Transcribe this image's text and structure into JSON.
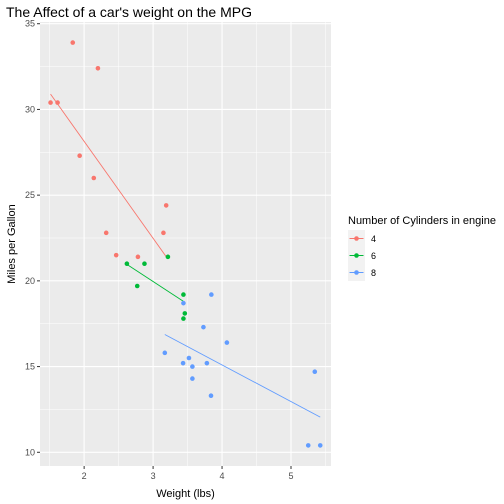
{
  "chart_data": {
    "type": "scatter",
    "title": "The Affect of a car's weight on the MPG",
    "xlabel": "Weight (lbs)",
    "ylabel": "Miles per Gallon",
    "xlim": [
      1.36,
      5.58
    ],
    "ylim": [
      9.2,
      35.1
    ],
    "x_ticks": [
      2,
      3,
      4,
      5
    ],
    "y_ticks": [
      10,
      15,
      20,
      25,
      30,
      35
    ],
    "grid": true,
    "legend": {
      "title": "Number of Cylinders in engine",
      "position": "right"
    },
    "series": [
      {
        "name": "4",
        "color": "#F8766D",
        "points": [
          [
            1.513,
            30.4
          ],
          [
            1.615,
            30.4
          ],
          [
            1.835,
            33.9
          ],
          [
            1.935,
            27.3
          ],
          [
            2.14,
            26.0
          ],
          [
            2.2,
            32.4
          ],
          [
            2.32,
            22.8
          ],
          [
            2.465,
            21.5
          ],
          [
            2.78,
            21.4
          ],
          [
            3.15,
            22.8
          ],
          [
            3.19,
            24.4
          ]
        ],
        "fit": [
          [
            1.513,
            30.89
          ],
          [
            3.19,
            21.41
          ]
        ]
      },
      {
        "name": "6",
        "color": "#00BA38",
        "points": [
          [
            2.62,
            21.0
          ],
          [
            2.77,
            19.7
          ],
          [
            2.875,
            21.0
          ],
          [
            3.215,
            21.4
          ],
          [
            3.44,
            19.2
          ],
          [
            3.44,
            17.8
          ],
          [
            3.46,
            18.1
          ]
        ],
        "fit": [
          [
            2.62,
            20.96
          ],
          [
            3.46,
            18.75
          ]
        ]
      },
      {
        "name": "8",
        "color": "#619CFF",
        "points": [
          [
            3.17,
            15.8
          ],
          [
            3.435,
            15.2
          ],
          [
            3.44,
            18.7
          ],
          [
            3.52,
            15.5
          ],
          [
            3.57,
            14.3
          ],
          [
            3.57,
            15.0
          ],
          [
            3.73,
            17.3
          ],
          [
            3.78,
            15.2
          ],
          [
            3.84,
            13.3
          ],
          [
            3.845,
            19.2
          ],
          [
            4.07,
            16.4
          ],
          [
            5.25,
            10.4
          ],
          [
            5.345,
            14.7
          ],
          [
            5.424,
            10.4
          ]
        ],
        "fit": [
          [
            3.17,
            16.87
          ],
          [
            5.424,
            12.05
          ]
        ]
      }
    ]
  }
}
